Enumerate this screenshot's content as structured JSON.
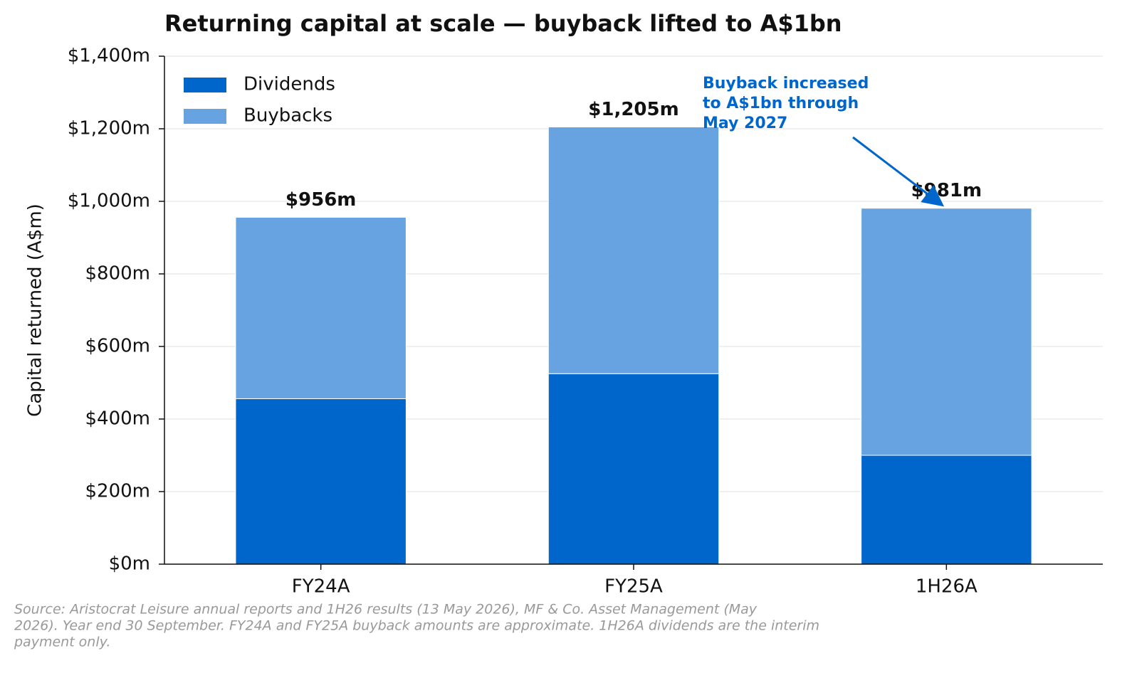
{
  "chart_data": {
    "type": "stacked_bar",
    "title": "Returning capital at scale — buyback lifted to A$1bn",
    "y_label": "Capital returned (A$m)",
    "categories": [
      "FY24A",
      "FY25A",
      "1H26A"
    ],
    "series": [
      {
        "name": "Dividends",
        "color": "#0066cc",
        "values": [
          456,
          525,
          300
        ]
      },
      {
        "name": "Buybacks",
        "color": "#66a3e0",
        "values": [
          500,
          680,
          681
        ]
      }
    ],
    "totals": {
      "values": [
        956,
        1205,
        981
      ],
      "value_labels": [
        "$956m",
        "$1,205m",
        "$981m"
      ]
    },
    "ylim": [
      0,
      1400
    ],
    "yticks": [
      {
        "value": 0,
        "label": "$0m"
      },
      {
        "value": 200,
        "label": "$200m"
      },
      {
        "value": 400,
        "label": "$400m"
      },
      {
        "value": 600,
        "label": "$600m"
      },
      {
        "value": 800,
        "label": "$800m"
      },
      {
        "value": 1000,
        "label": "$1,000m"
      },
      {
        "value": 1200,
        "label": "$1,200m"
      },
      {
        "value": 1400,
        "label": "$1,400m"
      }
    ],
    "grid": true,
    "legend": "upper-left",
    "annotation": {
      "lines": [
        "Buyback increased",
        "to A$1bn through",
        "May 2027"
      ]
    },
    "source": [
      "Source: Aristocrat Leisure annual reports and 1H26 results (13 May 2026), MF & Co. Asset Management (May",
      "2026). Year end 30 September. FY24A and FY25A buyback amounts are approximate. 1H26A dividends are the interim",
      "payment only."
    ]
  }
}
